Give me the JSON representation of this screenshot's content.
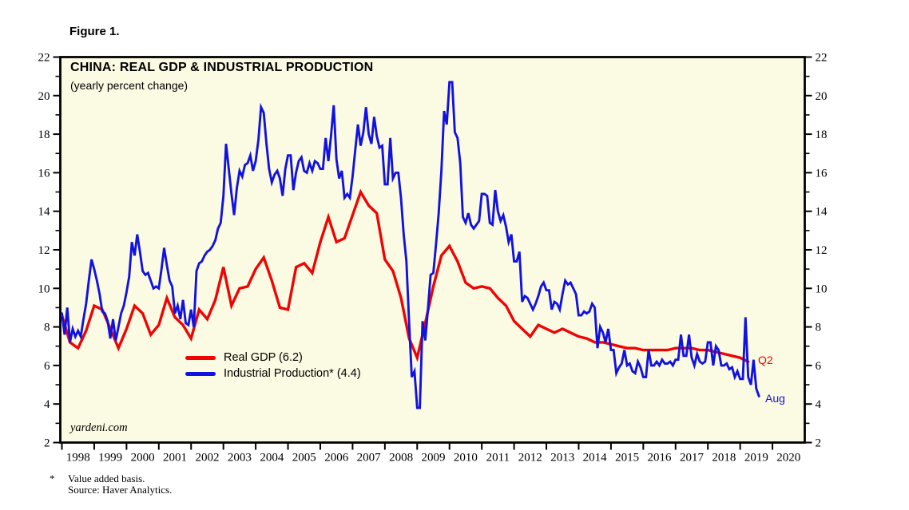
{
  "figure_label": "Figure 1.",
  "watermark": "yardeni.com",
  "footnote": {
    "star": "*",
    "line1": "Value added basis.",
    "line2": "Source: Haver Analytics."
  },
  "chart_data": {
    "type": "line",
    "title": "CHINA: REAL GDP & INDUSTRIAL PRODUCTION",
    "subtitle": "(yearly percent change)",
    "plot_background": "#fbfae2",
    "border_color": "#000000",
    "x_axis": {
      "min": 1998,
      "max": 2021,
      "tick_years": [
        1998,
        1999,
        2000,
        2001,
        2002,
        2003,
        2004,
        2005,
        2006,
        2007,
        2008,
        2009,
        2010,
        2011,
        2012,
        2013,
        2014,
        2015,
        2016,
        2017,
        2018,
        2019,
        2020
      ]
    },
    "y_axis": {
      "min": 2,
      "max": 22,
      "major_ticks": [
        2,
        4,
        6,
        8,
        10,
        12,
        14,
        16,
        18,
        20,
        22
      ],
      "minor_ticks": [
        3,
        5,
        7,
        9,
        11,
        13,
        15,
        17,
        19,
        21
      ],
      "labels_both_sides": true
    },
    "legend_position": "inside-left-lower",
    "grid": false,
    "series": [
      {
        "name": "Real GDP (6.2)",
        "color": "#ee0404",
        "frequency": "quarterly",
        "start": 1998.0,
        "step": 0.25,
        "values": [
          8.6,
          7.2,
          6.9,
          7.8,
          9.1,
          8.9,
          7.9,
          6.9,
          7.9,
          9.1,
          8.7,
          7.6,
          8.1,
          9.5,
          8.5,
          8.1,
          7.4,
          8.9,
          8.4,
          9.4,
          11.1,
          9.1,
          10.0,
          10.1,
          11.0,
          11.6,
          10.4,
          9.0,
          8.9,
          11.1,
          11.3,
          10.8,
          12.4,
          13.7,
          12.4,
          12.6,
          13.8,
          15.0,
          14.3,
          13.9,
          11.5,
          10.9,
          9.5,
          7.4,
          6.4,
          8.2,
          10.1,
          11.7,
          12.2,
          11.4,
          10.3,
          10.0,
          10.1,
          10.0,
          9.5,
          9.1,
          8.3,
          7.9,
          7.5,
          8.1,
          7.9,
          7.7,
          7.9,
          7.7,
          7.5,
          7.4,
          7.2,
          7.2,
          7.1,
          7.0,
          6.9,
          6.9,
          6.8,
          6.8,
          6.8,
          6.8,
          6.9,
          6.9,
          6.9,
          6.8,
          6.8,
          6.7,
          6.6,
          6.5,
          6.4,
          6.2
        ]
      },
      {
        "name": "Industrial Production* (4.4)",
        "color": "#1212e0",
        "frequency": "monthly",
        "start": 1998.0,
        "step": 0.08333,
        "values": [
          8.7,
          7.6,
          9.0,
          7.2,
          7.9,
          7.5,
          7.8,
          7.5,
          8.4,
          9.2,
          10.4,
          11.5,
          11.0,
          10.4,
          9.7,
          8.8,
          8.7,
          8.3,
          7.4,
          8.4,
          7.3,
          8.0,
          8.7,
          9.1,
          9.8,
          10.6,
          12.4,
          11.7,
          12.8,
          11.9,
          10.9,
          10.7,
          10.8,
          10.4,
          10.0,
          10.1,
          10.0,
          11.0,
          12.1,
          11.2,
          10.4,
          10.1,
          8.7,
          9.1,
          8.4,
          9.4,
          8.2,
          8.1,
          8.9,
          8.0,
          10.9,
          11.3,
          11.4,
          11.7,
          11.9,
          12.0,
          12.2,
          12.5,
          13.1,
          13.4,
          14.8,
          17.5,
          16.2,
          14.9,
          13.8,
          15.2,
          16.1,
          15.8,
          16.4,
          16.5,
          16.9,
          16.1,
          16.6,
          17.7,
          19.4,
          19.1,
          17.5,
          16.2,
          15.5,
          15.9,
          16.1,
          15.7,
          14.8,
          16.2,
          16.9,
          16.9,
          15.1,
          16.0,
          16.6,
          16.8,
          16.1,
          16.0,
          16.5,
          16.1,
          16.6,
          16.5,
          16.2,
          16.2,
          17.8,
          16.6,
          17.9,
          19.5,
          16.7,
          15.7,
          16.1,
          14.7,
          14.9,
          14.7,
          15.8,
          17.2,
          18.5,
          17.4,
          18.1,
          19.4,
          18.0,
          17.5,
          18.9,
          17.9,
          17.3,
          17.4,
          15.4,
          15.4,
          17.8,
          15.7,
          16.0,
          16.0,
          14.7,
          12.8,
          11.4,
          8.2,
          5.4,
          5.7,
          3.8,
          3.8,
          8.3,
          7.3,
          8.9,
          10.7,
          10.8,
          12.3,
          13.9,
          16.1,
          19.2,
          18.5,
          20.7,
          20.7,
          18.1,
          17.8,
          16.5,
          13.7,
          13.4,
          13.9,
          13.3,
          13.1,
          13.3,
          13.5,
          14.9,
          14.9,
          14.8,
          13.4,
          13.3,
          15.1,
          14.0,
          13.5,
          13.8,
          13.2,
          12.4,
          12.8,
          11.4,
          11.4,
          11.9,
          9.3,
          9.6,
          9.5,
          9.2,
          8.9,
          9.2,
          9.6,
          10.1,
          10.3,
          9.9,
          9.9,
          8.9,
          9.3,
          9.2,
          8.9,
          9.7,
          10.4,
          10.2,
          10.3,
          10.0,
          9.7,
          8.6,
          8.6,
          8.8,
          8.7,
          8.8,
          9.2,
          9.0,
          6.9,
          8.0,
          7.7,
          7.2,
          7.9,
          6.8,
          6.8,
          5.6,
          5.9,
          6.1,
          6.8,
          6.0,
          6.1,
          5.7,
          5.6,
          6.2,
          5.9,
          5.4,
          5.4,
          6.8,
          6.0,
          6.0,
          6.2,
          6.0,
          6.3,
          6.1,
          6.1,
          6.2,
          6.0,
          6.3,
          6.3,
          7.6,
          6.5,
          6.5,
          7.6,
          6.4,
          6.0,
          6.6,
          6.2,
          6.1,
          6.2,
          7.2,
          7.2,
          6.0,
          7.0,
          6.8,
          6.0,
          6.0,
          6.1,
          5.8,
          5.9,
          5.4,
          5.7,
          5.3,
          5.3,
          8.5,
          5.4,
          5.0,
          6.3,
          4.8,
          4.4
        ]
      }
    ],
    "annotations": [
      {
        "text": "Q2",
        "color": "#ee0404",
        "x": 2019.56,
        "y": 6.3
      },
      {
        "text": "Aug",
        "color": "#1212e0",
        "x": 2019.77,
        "y": 4.3
      }
    ]
  },
  "legend": {
    "items": [
      {
        "label": "Real GDP (6.2)",
        "color": "#ee0404"
      },
      {
        "label": "Industrial Production* (4.4)",
        "color": "#1212e0"
      }
    ]
  }
}
